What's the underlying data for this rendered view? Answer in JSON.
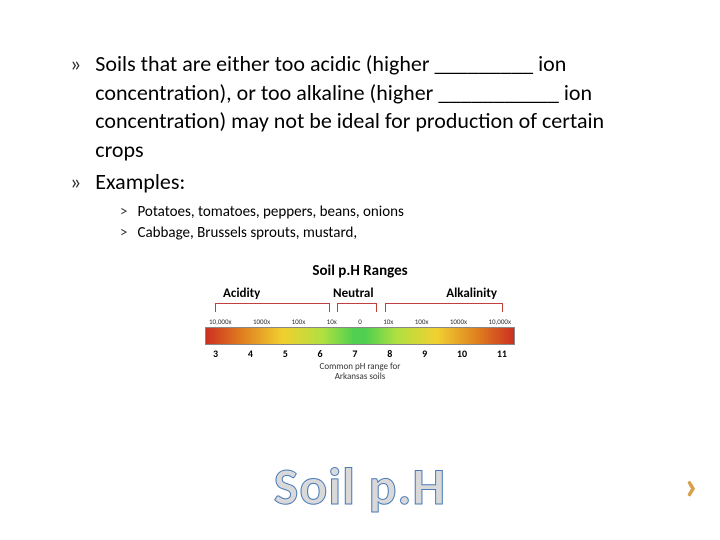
{
  "bullets": [
    {
      "marker": "»",
      "text": "Soils that are either too acidic (higher _________ ion concentration), or too alkaline (higher ___________ ion concentration) may not be ideal for production of certain crops"
    },
    {
      "marker": "»",
      "text": "Examples:"
    }
  ],
  "sub_bullets": [
    {
      "marker": "˃",
      "text": "Potatoes, tomatoes, peppers, beans, onions"
    },
    {
      "marker": "˃",
      "text": "Cabbage, Brussels sprouts, mustard,"
    }
  ],
  "chart": {
    "title": "Soil p.H Ranges",
    "label_left": "Acidity",
    "label_mid": "Neutral",
    "label_right": "Alkalinity",
    "multipliers": [
      "10,000x",
      "1000x",
      "100x",
      "10x",
      "0",
      "10x",
      "100x",
      "1000x",
      "10,000x"
    ],
    "ticks": [
      "3",
      "4",
      "5",
      "6",
      "7",
      "8",
      "9",
      "10",
      "11"
    ],
    "caption_line1": "Common pH range for",
    "caption_line2": "Arkansas soils",
    "gradient_colors": [
      "#cc3020",
      "#e08020",
      "#f0d030",
      "#b0e040",
      "#50d050",
      "#50d050",
      "#b0e040",
      "#f0d030",
      "#e08020",
      "#cc3020"
    ],
    "bracket_color": "#c04040"
  },
  "big_title": "Soil p.H",
  "nav_marker": "›",
  "colors": {
    "text": "#000000",
    "title_fill": "#d9d9d9",
    "title_stroke": "#4a7ab8",
    "chevron": "#d9a04a",
    "background": "#ffffff"
  }
}
